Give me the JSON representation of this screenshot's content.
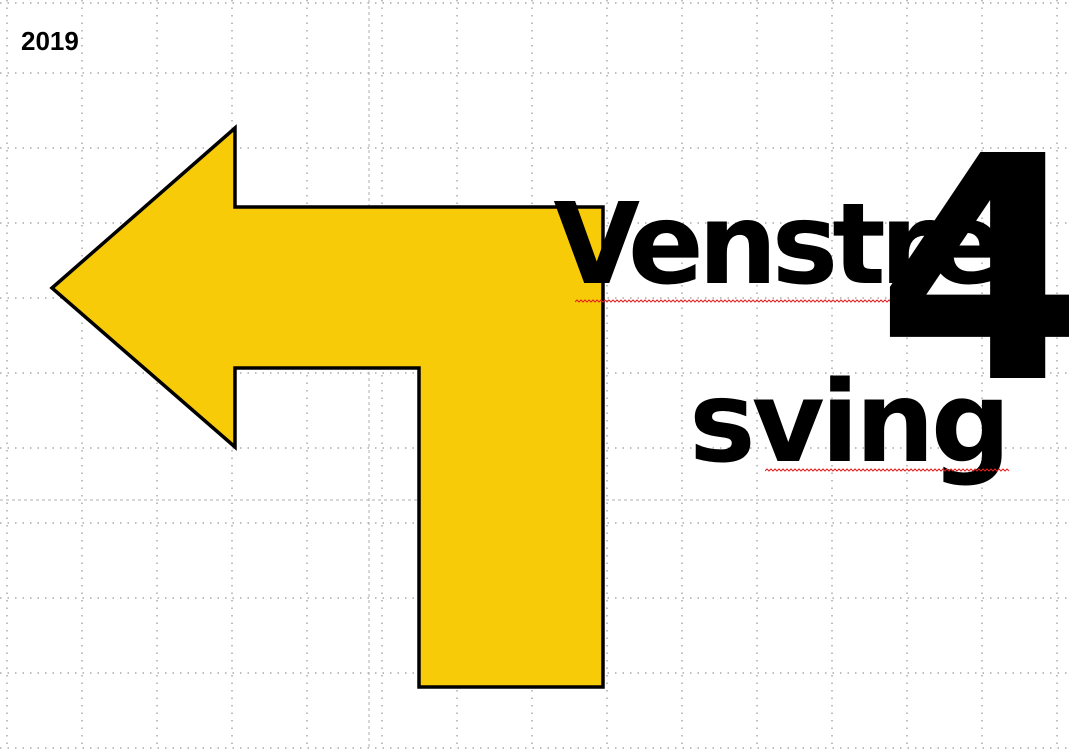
{
  "slide": {
    "year": "2019",
    "title_line1": "Venstre",
    "title_line2": "sving",
    "number": "4"
  },
  "arrow": {
    "shape": "left-turn-arrow",
    "fill_color": "#F8CB09",
    "stroke_color": "#000000"
  },
  "grid": {
    "dot_color": "#7f7f7f",
    "guide_color": "#b0b0b0"
  },
  "spellcheck": {
    "underline_color": "#e02020"
  }
}
